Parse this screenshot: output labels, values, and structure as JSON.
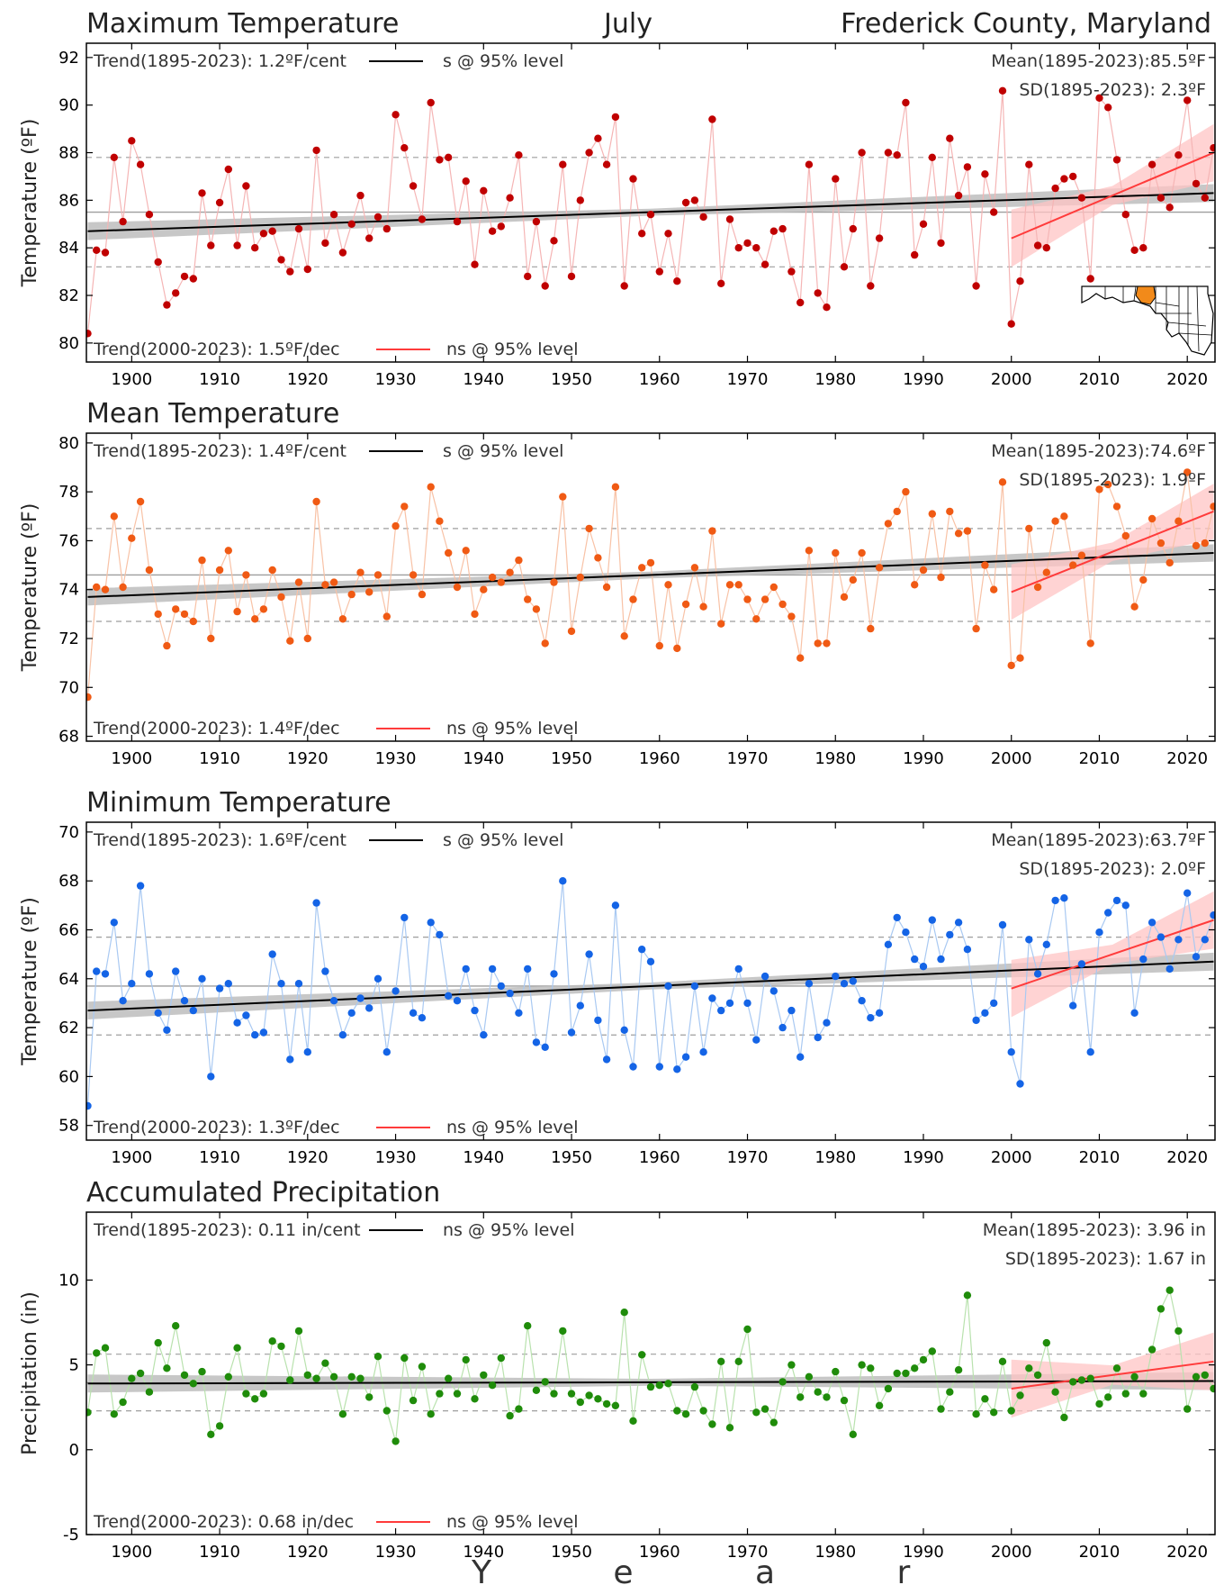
{
  "header": {
    "month": "July",
    "location": "Frederick County, Maryland",
    "x_axis_label": "Y e a r"
  },
  "colors": {
    "trend_long": "#000000",
    "trend_recent": "#ff3b3b",
    "band_long": "#bdbdbd",
    "band_recent": "#ffc4c4",
    "guide_line": "#9e9e9e"
  },
  "map_icon": "maryland-state-map-with-frederick-county-highlighted",
  "chart_data": [
    {
      "type": "line",
      "title": "Maximum Temperature",
      "ylabel": "Temperature (ºF)",
      "ylim": [
        79.2,
        92.6
      ],
      "yticks": [
        80,
        82,
        84,
        86,
        88,
        90,
        92
      ],
      "xlim": [
        1895,
        2023
      ],
      "xticks": [
        1900,
        1910,
        1920,
        1930,
        1940,
        1950,
        1960,
        1970,
        1980,
        1990,
        2000,
        2010,
        2020
      ],
      "color_point": "#c00000",
      "color_line": "#f5b5b5",
      "trend_long_text": "Trend(1895-2023):   1.2ºF/cent",
      "trend_long_sig": "s @ 95% level",
      "trend_recent_text": "Trend(2000-2023):   1.5ºF/dec",
      "trend_recent_sig": "ns @ 95% level",
      "mean_text": "Mean(1895-2023):85.5ºF",
      "sd_text": "SD(1895-2023): 2.3ºF",
      "mean": 85.5,
      "sd": 2.3,
      "trend_long_line": [
        84.7,
        86.3
      ],
      "trend_recent_line": [
        84.4,
        88.0
      ],
      "years": [
        1895,
        1896,
        1897,
        1898,
        1899,
        1900,
        1901,
        1902,
        1903,
        1904,
        1905,
        1906,
        1907,
        1908,
        1909,
        1910,
        1911,
        1912,
        1913,
        1914,
        1915,
        1916,
        1917,
        1918,
        1919,
        1920,
        1921,
        1922,
        1923,
        1924,
        1925,
        1926,
        1927,
        1928,
        1929,
        1930,
        1931,
        1932,
        1933,
        1934,
        1935,
        1936,
        1937,
        1938,
        1939,
        1940,
        1941,
        1942,
        1943,
        1944,
        1945,
        1946,
        1947,
        1948,
        1949,
        1950,
        1951,
        1952,
        1953,
        1954,
        1955,
        1956,
        1957,
        1958,
        1959,
        1960,
        1961,
        1962,
        1963,
        1964,
        1965,
        1966,
        1967,
        1968,
        1969,
        1970,
        1971,
        1972,
        1973,
        1974,
        1975,
        1976,
        1977,
        1978,
        1979,
        1980,
        1981,
        1982,
        1983,
        1984,
        1985,
        1986,
        1987,
        1988,
        1989,
        1990,
        1991,
        1992,
        1993,
        1994,
        1995,
        1996,
        1997,
        1998,
        1999,
        2000,
        2001,
        2002,
        2003,
        2004,
        2005,
        2006,
        2007,
        2008,
        2009,
        2010,
        2011,
        2012,
        2013,
        2014,
        2015,
        2016,
        2017,
        2018,
        2019,
        2020,
        2021,
        2022,
        2023
      ],
      "values": [
        80.4,
        83.9,
        83.8,
        87.8,
        85.1,
        88.5,
        87.5,
        85.4,
        83.4,
        81.6,
        82.1,
        82.8,
        82.7,
        86.3,
        84.1,
        85.9,
        87.3,
        84.1,
        86.6,
        84.0,
        84.6,
        84.7,
        83.5,
        83.0,
        84.8,
        83.1,
        88.1,
        84.2,
        85.4,
        83.8,
        85.0,
        86.2,
        84.4,
        85.3,
        84.8,
        89.6,
        88.2,
        86.6,
        85.2,
        90.1,
        87.7,
        87.8,
        85.1,
        86.8,
        83.3,
        86.4,
        84.7,
        84.9,
        86.1,
        87.9,
        82.8,
        85.1,
        82.4,
        84.3,
        87.5,
        82.8,
        86.0,
        88.0,
        88.6,
        87.5,
        89.5,
        82.4,
        86.9,
        84.6,
        85.4,
        83.0,
        84.6,
        82.6,
        85.9,
        86.0,
        85.3,
        89.4,
        82.5,
        85.2,
        84.0,
        84.2,
        84.0,
        83.3,
        84.7,
        84.8,
        83.0,
        81.7,
        87.5,
        82.1,
        81.5,
        86.9,
        83.2,
        84.8,
        88.0,
        82.4,
        84.4,
        88.0,
        87.9,
        90.1,
        83.7,
        85.0,
        87.8,
        84.2,
        88.6,
        86.2,
        87.4,
        82.4,
        87.1,
        85.5,
        90.6,
        80.8,
        82.6,
        87.5,
        84.1,
        84.0,
        86.5,
        86.9,
        87.0,
        86.1,
        82.7,
        90.3,
        89.9,
        87.7,
        85.4,
        83.9,
        84.0,
        87.5,
        86.1,
        85.7,
        87.9,
        90.2,
        86.7,
        86.1,
        88.2
      ]
    },
    {
      "type": "line",
      "title": "Mean Temperature",
      "ylabel": "Temperature (ºF)",
      "ylim": [
        67.8,
        80.4
      ],
      "yticks": [
        68,
        70,
        72,
        74,
        76,
        78,
        80
      ],
      "xlim": [
        1895,
        2023
      ],
      "xticks": [
        1900,
        1910,
        1920,
        1930,
        1940,
        1950,
        1960,
        1970,
        1980,
        1990,
        2000,
        2010,
        2020
      ],
      "color_point": "#f05a14",
      "color_line": "#f8c2a6",
      "trend_long_text": "Trend(1895-2023):   1.4ºF/cent",
      "trend_long_sig": "s @ 95% level",
      "trend_recent_text": "Trend(2000-2023):   1.4ºF/dec",
      "trend_recent_sig": "ns @ 95% level",
      "mean_text": "Mean(1895-2023):74.6ºF",
      "sd_text": "SD(1895-2023): 1.9ºF",
      "mean": 74.6,
      "sd": 1.9,
      "trend_long_line": [
        73.7,
        75.5
      ],
      "trend_recent_line": [
        73.9,
        77.2
      ],
      "years": [
        1895,
        1896,
        1897,
        1898,
        1899,
        1900,
        1901,
        1902,
        1903,
        1904,
        1905,
        1906,
        1907,
        1908,
        1909,
        1910,
        1911,
        1912,
        1913,
        1914,
        1915,
        1916,
        1917,
        1918,
        1919,
        1920,
        1921,
        1922,
        1923,
        1924,
        1925,
        1926,
        1927,
        1928,
        1929,
        1930,
        1931,
        1932,
        1933,
        1934,
        1935,
        1936,
        1937,
        1938,
        1939,
        1940,
        1941,
        1942,
        1943,
        1944,
        1945,
        1946,
        1947,
        1948,
        1949,
        1950,
        1951,
        1952,
        1953,
        1954,
        1955,
        1956,
        1957,
        1958,
        1959,
        1960,
        1961,
        1962,
        1963,
        1964,
        1965,
        1966,
        1967,
        1968,
        1969,
        1970,
        1971,
        1972,
        1973,
        1974,
        1975,
        1976,
        1977,
        1978,
        1979,
        1980,
        1981,
        1982,
        1983,
        1984,
        1985,
        1986,
        1987,
        1988,
        1989,
        1990,
        1991,
        1992,
        1993,
        1994,
        1995,
        1996,
        1997,
        1998,
        1999,
        2000,
        2001,
        2002,
        2003,
        2004,
        2005,
        2006,
        2007,
        2008,
        2009,
        2010,
        2011,
        2012,
        2013,
        2014,
        2015,
        2016,
        2017,
        2018,
        2019,
        2020,
        2021,
        2022,
        2023
      ],
      "values": [
        69.6,
        74.1,
        74.0,
        77.0,
        74.1,
        76.1,
        77.6,
        74.8,
        73.0,
        71.7,
        73.2,
        73.0,
        72.7,
        75.2,
        72.0,
        74.8,
        75.6,
        73.1,
        74.6,
        72.8,
        73.2,
        74.8,
        73.7,
        71.9,
        74.3,
        72.0,
        77.6,
        74.2,
        74.3,
        72.8,
        73.8,
        74.7,
        73.9,
        74.6,
        72.9,
        76.6,
        77.4,
        74.6,
        73.8,
        78.2,
        76.8,
        75.5,
        74.1,
        75.6,
        73.0,
        74.0,
        74.5,
        74.3,
        74.7,
        75.2,
        73.6,
        73.2,
        71.8,
        74.3,
        77.8,
        72.3,
        74.5,
        76.5,
        75.3,
        74.1,
        78.2,
        72.1,
        73.6,
        74.9,
        75.1,
        71.7,
        74.2,
        71.6,
        73.4,
        74.9,
        73.3,
        76.4,
        72.6,
        74.2,
        74.2,
        73.6,
        72.8,
        73.6,
        74.1,
        73.4,
        72.9,
        71.2,
        75.6,
        71.8,
        71.8,
        75.5,
        73.7,
        74.4,
        75.5,
        72.4,
        74.9,
        76.7,
        77.2,
        78.0,
        74.2,
        74.8,
        77.1,
        74.5,
        77.2,
        76.3,
        76.4,
        72.4,
        75.0,
        74.0,
        78.4,
        70.9,
        71.2,
        76.5,
        74.1,
        74.7,
        76.8,
        77.0,
        75.0,
        75.4,
        71.8,
        78.1,
        78.3,
        77.4,
        76.2,
        73.3,
        74.4,
        76.9,
        75.9,
        75.1,
        76.8,
        78.8,
        75.8,
        75.9,
        77.4
      ]
    },
    {
      "type": "line",
      "title": "Minimum Temperature",
      "ylabel": "Temperature (ºF)",
      "ylim": [
        57.4,
        70.4
      ],
      "yticks": [
        58,
        60,
        62,
        64,
        66,
        68,
        70
      ],
      "xlim": [
        1895,
        2023
      ],
      "xticks": [
        1900,
        1910,
        1920,
        1930,
        1940,
        1950,
        1960,
        1970,
        1980,
        1990,
        2000,
        2010,
        2020
      ],
      "color_point": "#1464e6",
      "color_line": "#a9c9f2",
      "trend_long_text": "Trend(1895-2023):   1.6ºF/cent",
      "trend_long_sig": "s @ 95% level",
      "trend_recent_text": "Trend(2000-2023):   1.3ºF/dec",
      "trend_recent_sig": "ns @ 95% level",
      "mean_text": "Mean(1895-2023):63.7ºF",
      "sd_text": "SD(1895-2023): 2.0ºF",
      "mean": 63.7,
      "sd": 2.0,
      "trend_long_line": [
        62.7,
        64.7
      ],
      "trend_recent_line": [
        63.6,
        66.4
      ],
      "years": [
        1895,
        1896,
        1897,
        1898,
        1899,
        1900,
        1901,
        1902,
        1903,
        1904,
        1905,
        1906,
        1907,
        1908,
        1909,
        1910,
        1911,
        1912,
        1913,
        1914,
        1915,
        1916,
        1917,
        1918,
        1919,
        1920,
        1921,
        1922,
        1923,
        1924,
        1925,
        1926,
        1927,
        1928,
        1929,
        1930,
        1931,
        1932,
        1933,
        1934,
        1935,
        1936,
        1937,
        1938,
        1939,
        1940,
        1941,
        1942,
        1943,
        1944,
        1945,
        1946,
        1947,
        1948,
        1949,
        1950,
        1951,
        1952,
        1953,
        1954,
        1955,
        1956,
        1957,
        1958,
        1959,
        1960,
        1961,
        1962,
        1963,
        1964,
        1965,
        1966,
        1967,
        1968,
        1969,
        1970,
        1971,
        1972,
        1973,
        1974,
        1975,
        1976,
        1977,
        1978,
        1979,
        1980,
        1981,
        1982,
        1983,
        1984,
        1985,
        1986,
        1987,
        1988,
        1989,
        1990,
        1991,
        1992,
        1993,
        1994,
        1995,
        1996,
        1997,
        1998,
        1999,
        2000,
        2001,
        2002,
        2003,
        2004,
        2005,
        2006,
        2007,
        2008,
        2009,
        2010,
        2011,
        2012,
        2013,
        2014,
        2015,
        2016,
        2017,
        2018,
        2019,
        2020,
        2021,
        2022,
        2023
      ],
      "values": [
        58.8,
        64.3,
        64.2,
        66.3,
        63.1,
        63.8,
        67.8,
        64.2,
        62.6,
        61.9,
        64.3,
        63.1,
        62.7,
        64.0,
        60.0,
        63.6,
        63.8,
        62.2,
        62.5,
        61.7,
        61.8,
        65.0,
        63.8,
        60.7,
        63.8,
        61.0,
        67.1,
        64.3,
        63.1,
        61.7,
        62.6,
        63.2,
        62.8,
        64.0,
        61.0,
        63.5,
        66.5,
        62.6,
        62.4,
        66.3,
        65.8,
        63.3,
        63.1,
        64.4,
        62.7,
        61.7,
        64.4,
        63.7,
        63.4,
        62.6,
        64.4,
        61.4,
        61.2,
        64.2,
        68.0,
        61.8,
        62.9,
        65.0,
        62.3,
        60.7,
        67.0,
        61.9,
        60.4,
        65.2,
        64.7,
        60.4,
        63.7,
        60.3,
        60.8,
        63.7,
        61.0,
        63.2,
        62.7,
        63.0,
        64.4,
        63.0,
        61.5,
        64.1,
        63.5,
        62.0,
        62.7,
        60.8,
        63.8,
        61.6,
        62.2,
        64.1,
        63.8,
        63.9,
        63.1,
        62.4,
        62.6,
        65.4,
        66.5,
        65.9,
        64.8,
        64.5,
        66.4,
        64.8,
        65.8,
        66.3,
        65.2,
        62.3,
        62.6,
        63.0,
        66.2,
        61.0,
        59.7,
        65.6,
        64.2,
        65.4,
        67.2,
        67.3,
        62.9,
        64.6,
        61.0,
        65.9,
        66.7,
        67.2,
        67.0,
        62.6,
        64.8,
        66.3,
        65.7,
        64.4,
        65.6,
        67.5,
        64.9,
        65.6,
        66.6
      ]
    },
    {
      "type": "line",
      "title": "Accumulated Precipitation",
      "ylabel": "Precipitation (in)",
      "ylim": [
        -5,
        14
      ],
      "yticks": [
        -5,
        0,
        5,
        10
      ],
      "xlim": [
        1895,
        2023
      ],
      "xticks": [
        1900,
        1910,
        1920,
        1930,
        1940,
        1950,
        1960,
        1970,
        1980,
        1990,
        2000,
        2010,
        2020
      ],
      "color_point": "#1f8c0a",
      "color_line": "#b9e2ae",
      "trend_long_text": "Trend(1895-2023):   0.11 in/cent",
      "trend_long_sig": "ns @ 95% level",
      "trend_recent_text": "Trend(2000-2023):   0.68 in/dec",
      "trend_recent_sig": "ns @ 95% level",
      "mean_text": "Mean(1895-2023): 3.96 in",
      "sd_text": "SD(1895-2023): 1.67 in",
      "mean": 3.96,
      "sd": 1.67,
      "trend_long_line": [
        3.9,
        4.05
      ],
      "trend_recent_line": [
        3.6,
        5.2
      ],
      "years": [
        1895,
        1896,
        1897,
        1898,
        1899,
        1900,
        1901,
        1902,
        1903,
        1904,
        1905,
        1906,
        1907,
        1908,
        1909,
        1910,
        1911,
        1912,
        1913,
        1914,
        1915,
        1916,
        1917,
        1918,
        1919,
        1920,
        1921,
        1922,
        1923,
        1924,
        1925,
        1926,
        1927,
        1928,
        1929,
        1930,
        1931,
        1932,
        1933,
        1934,
        1935,
        1936,
        1937,
        1938,
        1939,
        1940,
        1941,
        1942,
        1943,
        1944,
        1945,
        1946,
        1947,
        1948,
        1949,
        1950,
        1951,
        1952,
        1953,
        1954,
        1955,
        1956,
        1957,
        1958,
        1959,
        1960,
        1961,
        1962,
        1963,
        1964,
        1965,
        1966,
        1967,
        1968,
        1969,
        1970,
        1971,
        1972,
        1973,
        1974,
        1975,
        1976,
        1977,
        1978,
        1979,
        1980,
        1981,
        1982,
        1983,
        1984,
        1985,
        1986,
        1987,
        1988,
        1989,
        1990,
        1991,
        1992,
        1993,
        1994,
        1995,
        1996,
        1997,
        1998,
        1999,
        2000,
        2001,
        2002,
        2003,
        2004,
        2005,
        2006,
        2007,
        2008,
        2009,
        2010,
        2011,
        2012,
        2013,
        2014,
        2015,
        2016,
        2017,
        2018,
        2019,
        2020,
        2021,
        2022,
        2023
      ],
      "values": [
        2.2,
        5.7,
        6.0,
        2.1,
        2.8,
        4.2,
        4.5,
        3.4,
        6.3,
        4.8,
        7.3,
        4.4,
        3.9,
        4.6,
        0.9,
        1.4,
        4.3,
        6.0,
        3.3,
        3.0,
        3.3,
        6.4,
        6.1,
        4.1,
        7.0,
        4.4,
        4.2,
        5.1,
        4.3,
        2.1,
        4.3,
        4.2,
        3.1,
        5.5,
        2.3,
        0.5,
        5.4,
        2.9,
        4.9,
        2.1,
        3.3,
        4.2,
        3.3,
        5.3,
        3.0,
        4.4,
        3.8,
        5.4,
        2.0,
        2.4,
        7.3,
        3.5,
        4.0,
        3.3,
        7.0,
        3.3,
        2.8,
        3.2,
        3.0,
        2.7,
        2.6,
        8.1,
        1.7,
        5.6,
        3.7,
        3.8,
        3.9,
        2.3,
        2.1,
        3.7,
        2.3,
        1.5,
        5.2,
        1.3,
        5.2,
        7.1,
        2.2,
        2.4,
        1.6,
        4.0,
        5.0,
        3.1,
        4.3,
        3.4,
        3.1,
        4.6,
        2.9,
        0.9,
        5.0,
        4.8,
        2.6,
        3.6,
        4.5,
        4.5,
        4.8,
        5.3,
        5.8,
        2.4,
        3.4,
        4.7,
        9.1,
        2.1,
        3.0,
        2.2,
        5.2,
        2.3,
        3.2,
        4.8,
        4.4,
        6.3,
        3.4,
        1.9,
        4.0,
        4.1,
        4.2,
        2.7,
        3.1,
        4.8,
        3.3,
        4.3,
        3.3,
        5.9,
        8.3,
        9.4,
        7.0,
        2.4,
        4.3,
        4.4,
        3.6
      ]
    }
  ]
}
